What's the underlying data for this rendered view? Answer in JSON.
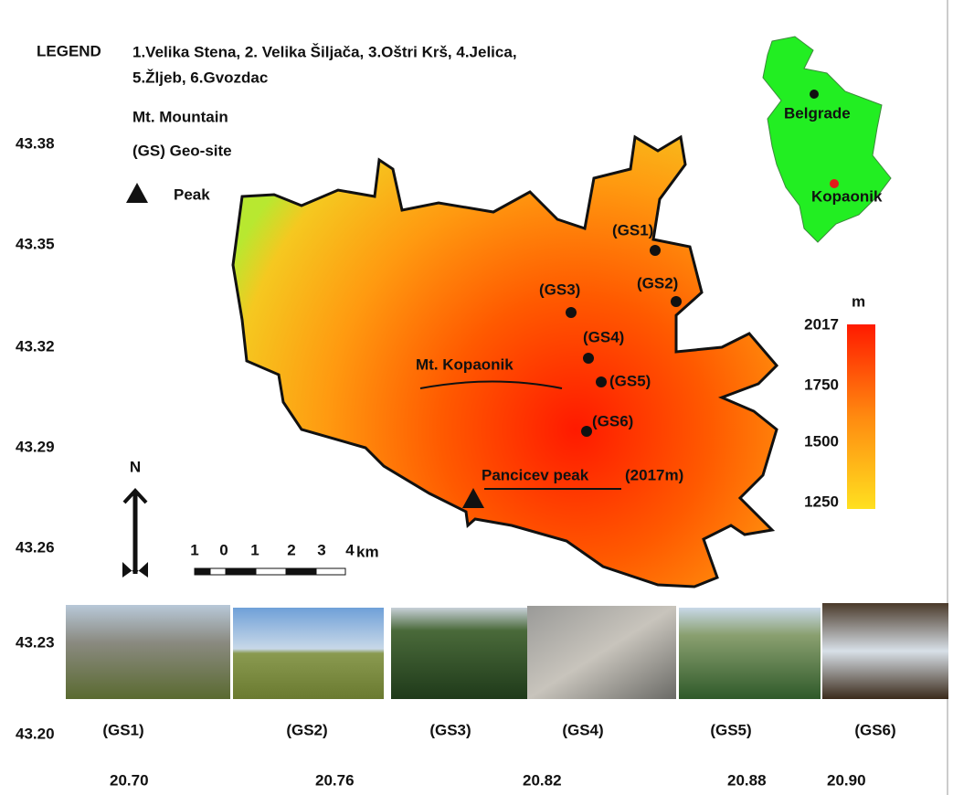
{
  "legend": {
    "title": "LEGEND",
    "items_line1": "1.Velika Stena, 2. Velika Šiljača, 3.Oštri Krš, 4.Jelica,",
    "items_line2": "5.Žljeb, 6.Gvozdac",
    "mountain": "Mt. Mountain",
    "geosite": "(GS) Geo-site",
    "peak": "Peak"
  },
  "latitude_labels": [
    "43.38",
    "43.35",
    "43.32",
    "43.29",
    "43.26",
    "43.23",
    "43.20"
  ],
  "longitude_labels": [
    "20.70",
    "20.76",
    "20.82",
    "20.88",
    "20.90"
  ],
  "map": {
    "geosites": [
      "(GS1)",
      "(GS2)",
      "(GS3)",
      "(GS4)",
      "(GS5)",
      "(GS6)"
    ],
    "mountain_label": "Mt. Kopaonik",
    "peak_label": "Pancicev peak",
    "peak_elevation": "(2017m)"
  },
  "elevation_scale": {
    "unit": "m",
    "labels": [
      "2017",
      "1750",
      "1500",
      "1250"
    ]
  },
  "scale_bar": {
    "labels": [
      "1",
      "0",
      "1",
      "2",
      "3",
      "4"
    ],
    "unit": "km"
  },
  "north": "N",
  "inset": {
    "capital": "Belgrade",
    "site": "Kopaonik"
  },
  "photos": {
    "captions": [
      "(GS1)",
      "(GS2)",
      "(GS3)",
      "(GS4)",
      "(GS5)",
      "(GS6)"
    ]
  }
}
